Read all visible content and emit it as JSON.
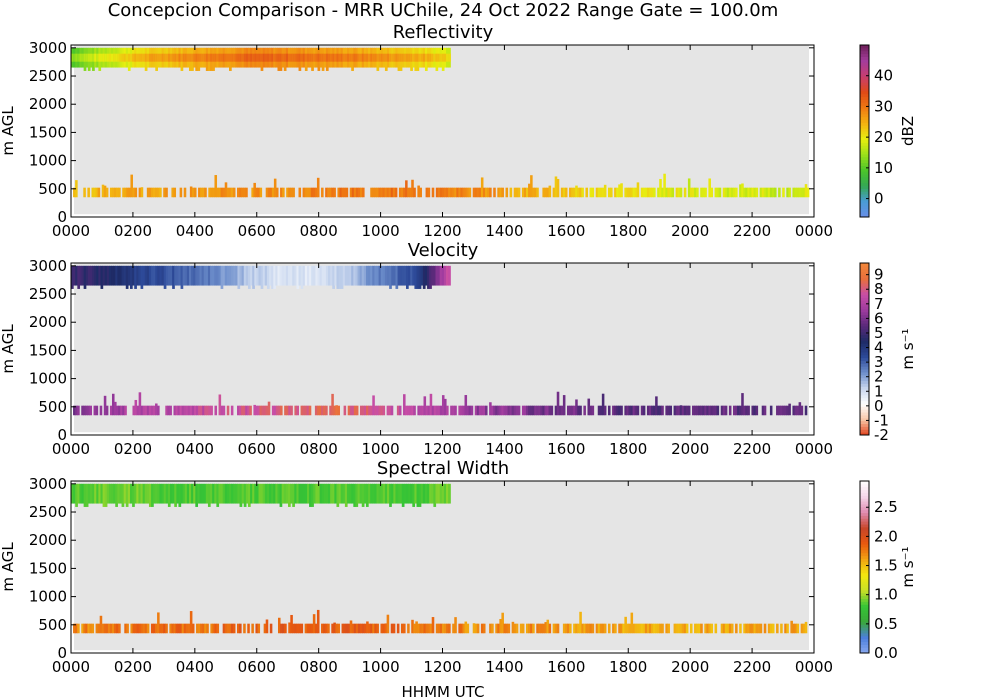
{
  "figure": {
    "suptitle": "Concepcion Comparison - MRR UChile, 24 Oct 2022 Range Gate = 100.0m",
    "xlabel": "HHMM UTC"
  },
  "chart_data": [
    {
      "type": "heatmap",
      "title": "Reflectivity",
      "xlabel": "HHMM UTC",
      "ylabel": "m AGL",
      "x_ticks": [
        "0000",
        "0200",
        "0400",
        "0600",
        "0800",
        "1000",
        "1200",
        "1400",
        "1600",
        "1800",
        "2000",
        "2200",
        "0000"
      ],
      "xlim_hours": [
        0,
        24
      ],
      "y_ticks": [
        0,
        500,
        1000,
        1500,
        2000,
        2500,
        3000
      ],
      "ylim": [
        0,
        3050
      ],
      "colorbar": {
        "label": "dBZ",
        "ticks": [
          0,
          10,
          20,
          30,
          40
        ],
        "range": [
          -6,
          50
        ],
        "colors": [
          "#6a8fe8",
          "#4a9bd6",
          "#34a853",
          "#4cc52a",
          "#9be01a",
          "#e8ee10",
          "#f3b311",
          "#ef7a12",
          "#e04a16",
          "#c83e6f",
          "#a43d9c",
          "#6e1f5a"
        ]
      },
      "background_color": "#e5e5e5",
      "features": [
        {
          "name": "upper-layer",
          "start": "0000",
          "end": "1215",
          "base_m": 2650,
          "top_m": 3000,
          "values_dBZ": [
            10,
            16,
            21,
            24,
            26,
            28,
            28,
            27,
            26,
            24,
            22,
            18
          ]
        },
        {
          "name": "low-level-band",
          "start": "0000",
          "end": "2350",
          "base_m": 350,
          "top_m": 600,
          "values_dBZ": [
            24,
            26,
            27,
            28,
            30,
            30,
            28,
            24,
            21,
            19,
            18,
            18
          ]
        }
      ]
    },
    {
      "type": "heatmap",
      "title": "Velocity",
      "xlabel": "HHMM UTC",
      "ylabel": "m AGL",
      "x_ticks": [
        "0000",
        "0200",
        "0400",
        "0600",
        "0800",
        "1000",
        "1200",
        "1400",
        "1600",
        "1800",
        "2000",
        "2200",
        "0000"
      ],
      "xlim_hours": [
        0,
        24
      ],
      "y_ticks": [
        0,
        500,
        1000,
        1500,
        2000,
        2500,
        3000
      ],
      "ylim": [
        0,
        3050
      ],
      "colorbar": {
        "label": "m s⁻¹",
        "ticks": [
          -2,
          -1,
          0,
          1,
          2,
          3,
          4,
          5,
          6,
          7,
          8,
          9
        ],
        "range": [
          -2,
          9.8
        ],
        "colors": [
          "#e0401a",
          "#f7c6a6",
          "#ffffff",
          "#c8d6ee",
          "#6e8fcc",
          "#2d4a99",
          "#1e2b66",
          "#5a2a7a",
          "#9d3b9e",
          "#c84ea6",
          "#e86f3c",
          "#f2873a"
        ]
      },
      "background_color": "#e5e5e5",
      "features": [
        {
          "name": "upper-layer",
          "start": "0000",
          "end": "1215",
          "base_m": 2650,
          "top_m": 3000,
          "values_ms": [
            5,
            4.5,
            3.6,
            3.2,
            2.6,
            1.6,
            0.9,
            0.8,
            1.4,
            2.6,
            3.3,
            8
          ]
        },
        {
          "name": "low-level-band",
          "start": "0000",
          "end": "2350",
          "base_m": 350,
          "top_m": 600,
          "values_ms": [
            6,
            7,
            7.5,
            8,
            8.5,
            7.5,
            6.5,
            6,
            5.5,
            5.5,
            5.5,
            5.5
          ]
        }
      ]
    },
    {
      "type": "heatmap",
      "title": "Spectral Width",
      "xlabel": "HHMM UTC",
      "ylabel": "m AGL",
      "x_ticks": [
        "0000",
        "0200",
        "0400",
        "0600",
        "0800",
        "1000",
        "1200",
        "1400",
        "1600",
        "1800",
        "2000",
        "2200",
        "0000"
      ],
      "xlim_hours": [
        0,
        24
      ],
      "y_ticks": [
        0,
        500,
        1000,
        1500,
        2000,
        2500,
        3000
      ],
      "ylim": [
        0,
        3050
      ],
      "colorbar": {
        "label": "m s⁻¹",
        "ticks": [
          0.0,
          0.5,
          1.0,
          1.5,
          2.0,
          2.5
        ],
        "range": [
          0,
          2.95
        ],
        "colors": [
          "#8aa9ef",
          "#4c7fdc",
          "#3aa83a",
          "#36c436",
          "#c8e027",
          "#f3e70f",
          "#f2a512",
          "#e8590f",
          "#c7462a",
          "#e08ab0",
          "#f4d4e8",
          "#ffffff"
        ]
      },
      "background_color": "#e5e5e5",
      "features": [
        {
          "name": "upper-layer",
          "start": "0000",
          "end": "1215",
          "base_m": 2650,
          "top_m": 3000,
          "values_ms": [
            0.85,
            0.9,
            0.9,
            0.85,
            0.85,
            0.85,
            0.85,
            0.85,
            0.85,
            0.85,
            0.85,
            0.9
          ]
        },
        {
          "name": "low-level-band",
          "start": "0000",
          "end": "2350",
          "base_m": 350,
          "top_m": 600,
          "values_ms": [
            1.7,
            1.8,
            1.8,
            1.9,
            1.9,
            1.8,
            1.7,
            1.7,
            1.6,
            1.6,
            1.6,
            1.6
          ]
        }
      ]
    }
  ]
}
